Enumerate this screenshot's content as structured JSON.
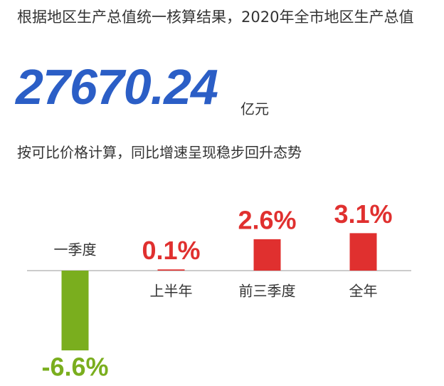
{
  "header": {
    "title": "根据地区生产总值统一核算结果，2020年全市地区生产总值",
    "total": 27670.24,
    "unit": "亿元",
    "subtitle": "按可比价格计算，同比增速呈现稳步回升态势"
  },
  "chart_data": {
    "type": "bar",
    "categories": [
      "一季度",
      "上半年",
      "前三季度",
      "全年"
    ],
    "values": [
      -6.6,
      0.1,
      2.6,
      3.1
    ],
    "value_labels": [
      "-6.6%",
      "0.1%",
      "2.6%",
      "3.1%"
    ],
    "colors": [
      "#7aae1e",
      "#e0302f",
      "#e0302f",
      "#e0302f"
    ]
  }
}
